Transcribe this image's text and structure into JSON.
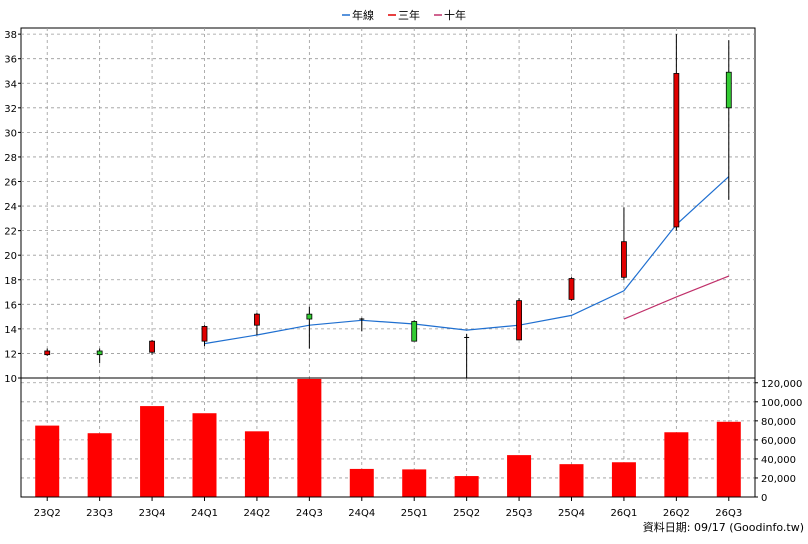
{
  "legend": [
    {
      "label": "年線",
      "color": "#1f6fd0"
    },
    {
      "label": "三年",
      "color": "#e00000"
    },
    {
      "label": "十年",
      "color": "#c0306a"
    }
  ],
  "footer": {
    "text": "資料日期: 09/17  (Goodinfo.tw)"
  },
  "chart_data": [
    {
      "type": "candlestick",
      "categories": [
        "23Q2",
        "23Q3",
        "23Q4",
        "24Q1",
        "24Q2",
        "24Q3",
        "24Q4",
        "25Q1",
        "25Q2",
        "25Q3",
        "25Q4",
        "26Q1",
        "26Q2",
        "26Q3"
      ],
      "ylim": [
        10,
        38.5
      ],
      "yticks": [
        10,
        12,
        14,
        16,
        18,
        20,
        22,
        24,
        26,
        28,
        30,
        32,
        34,
        36,
        38
      ],
      "candles": [
        {
          "open": 11.9,
          "close": 12.2,
          "high": 12.4,
          "low": 11.8,
          "color": "red"
        },
        {
          "open": 12.2,
          "close": 11.9,
          "high": 12.4,
          "low": 11.2,
          "color": "green"
        },
        {
          "open": 12.1,
          "close": 13.0,
          "high": 13.1,
          "low": 11.9,
          "color": "red"
        },
        {
          "open": 13.0,
          "close": 14.2,
          "high": 14.3,
          "low": 12.6,
          "color": "red"
        },
        {
          "open": 14.3,
          "close": 15.2,
          "high": 15.3,
          "low": 13.5,
          "color": "red"
        },
        {
          "open": 15.2,
          "close": 14.8,
          "high": 15.8,
          "low": 12.4,
          "color": "green"
        },
        {
          "open": 14.8,
          "close": 14.7,
          "high": 14.9,
          "low": 13.8,
          "color": "black"
        },
        {
          "open": 14.6,
          "close": 13.0,
          "high": 14.7,
          "low": 13.0,
          "color": "green"
        },
        {
          "open": 13.2,
          "close": 13.3,
          "high": 13.6,
          "low": 10.0,
          "color": "black"
        },
        {
          "open": 13.1,
          "close": 16.3,
          "high": 16.5,
          "low": 13.1,
          "color": "red"
        },
        {
          "open": 16.4,
          "close": 18.1,
          "high": 18.2,
          "low": 16.3,
          "color": "red"
        },
        {
          "open": 18.2,
          "close": 21.1,
          "high": 23.9,
          "low": 18.0,
          "color": "red"
        },
        {
          "open": 22.3,
          "close": 34.8,
          "high": 38.0,
          "low": 22.0,
          "color": "red"
        },
        {
          "open": 34.9,
          "close": 32.0,
          "high": 37.5,
          "low": 24.5,
          "color": "green"
        }
      ],
      "series": [
        {
          "name": "年線",
          "color": "#1f6fd0",
          "values": [
            null,
            null,
            null,
            12.8,
            13.5,
            14.3,
            14.7,
            14.4,
            13.9,
            14.3,
            15.1,
            17.1,
            22.5,
            26.4
          ]
        },
        {
          "name": "三年",
          "color": "#e00000",
          "values": [
            null,
            null,
            null,
            null,
            null,
            null,
            null,
            null,
            null,
            null,
            null,
            null,
            null,
            null
          ]
        },
        {
          "name": "十年",
          "color": "#c0306a",
          "values": [
            null,
            null,
            null,
            null,
            null,
            null,
            null,
            null,
            null,
            null,
            null,
            14.8,
            16.6,
            18.3
          ]
        }
      ],
      "grid": true
    },
    {
      "type": "bar",
      "categories": [
        "23Q2",
        "23Q3",
        "23Q4",
        "24Q1",
        "24Q2",
        "24Q3",
        "24Q4",
        "25Q1",
        "25Q2",
        "25Q3",
        "25Q4",
        "26Q1",
        "26Q2",
        "26Q3"
      ],
      "values": [
        75000,
        67000,
        95500,
        88000,
        69000,
        124000,
        29500,
        29000,
        22000,
        44000,
        34500,
        36500,
        68000,
        79000
      ],
      "bar_color": "#ff0000",
      "ylim": [
        0,
        125000
      ],
      "yticks": [
        0,
        20000,
        40000,
        60000,
        80000,
        100000,
        120000
      ],
      "ytick_labels": [
        "0",
        "20,000",
        "40,000",
        "60,000",
        "80,000",
        "100,000",
        "120,000"
      ],
      "ylabel_position": "right",
      "grid": true
    }
  ]
}
